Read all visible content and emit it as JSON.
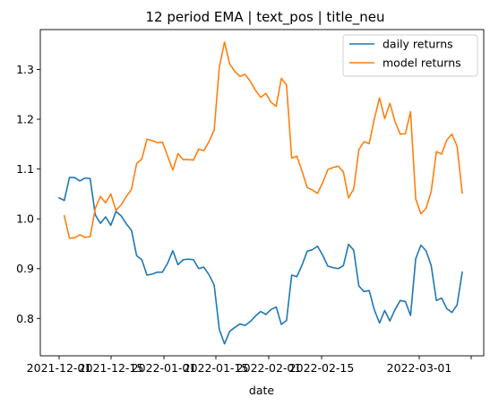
{
  "chart_data": {
    "type": "line",
    "title": "12 period EMA | text_pos | title_neu",
    "xlabel": "date",
    "ylabel": "",
    "x_tick_labels": [
      "2021-12-01",
      "2021-12-15",
      "2022-01-01",
      "2022-01-15",
      "2022-02-01",
      "2022-02-15",
      "2022-03-01"
    ],
    "y_ticks": [
      0.8,
      0.9,
      1.0,
      1.1,
      1.2,
      1.3
    ],
    "y_tick_labels": [
      "0.8",
      "0.9",
      "1.0",
      "1.1",
      "1.2",
      "1.3"
    ],
    "ylim": [
      0.725,
      1.38
    ],
    "grid": false,
    "legend_position": "top-right",
    "series": [
      {
        "name": "daily returns",
        "color": "#1f77b4",
        "values": [
          1.042,
          1.037,
          1.083,
          1.083,
          1.076,
          1.082,
          1.081,
          1.008,
          0.991,
          1.004,
          0.987,
          1.015,
          1.006,
          0.99,
          0.977,
          0.926,
          0.918,
          0.887,
          0.889,
          0.893,
          0.893,
          0.911,
          0.936,
          0.908,
          0.918,
          0.919,
          0.918,
          0.9,
          0.903,
          0.888,
          0.867,
          0.778,
          0.749,
          0.774,
          0.782,
          0.789,
          0.786,
          0.794,
          0.805,
          0.814,
          0.808,
          0.818,
          0.823,
          0.788,
          0.796,
          0.887,
          0.884,
          0.907,
          0.935,
          0.938,
          0.945,
          0.927,
          0.905,
          0.902,
          0.9,
          0.906,
          0.949,
          0.937,
          0.865,
          0.854,
          0.856,
          0.817,
          0.791,
          0.816,
          0.795,
          0.818,
          0.836,
          0.834,
          0.806,
          0.92,
          0.947,
          0.936,
          0.906,
          0.836,
          0.841,
          0.82,
          0.812,
          0.827,
          0.893
        ]
      },
      {
        "name": "model returns",
        "color": "#ff7f0e",
        "values": [
          null,
          1.006,
          0.961,
          0.962,
          0.968,
          0.963,
          0.964,
          1.021,
          1.045,
          1.032,
          1.05,
          1.017,
          1.028,
          1.045,
          1.059,
          1.111,
          1.12,
          1.16,
          1.157,
          1.153,
          1.154,
          1.126,
          1.098,
          1.131,
          1.119,
          1.119,
          1.118,
          1.14,
          1.137,
          1.155,
          1.178,
          1.305,
          1.355,
          1.311,
          1.296,
          1.286,
          1.29,
          1.276,
          1.258,
          1.244,
          1.252,
          1.234,
          1.226,
          1.282,
          1.269,
          1.122,
          1.126,
          1.096,
          1.063,
          1.058,
          1.051,
          1.073,
          1.099,
          1.103,
          1.106,
          1.094,
          1.042,
          1.06,
          1.139,
          1.155,
          1.151,
          1.201,
          1.243,
          1.201,
          1.232,
          1.195,
          1.17,
          1.171,
          1.215,
          1.04,
          1.01,
          1.021,
          1.055,
          1.135,
          1.13,
          1.158,
          1.17,
          1.146,
          1.052
        ]
      }
    ]
  }
}
